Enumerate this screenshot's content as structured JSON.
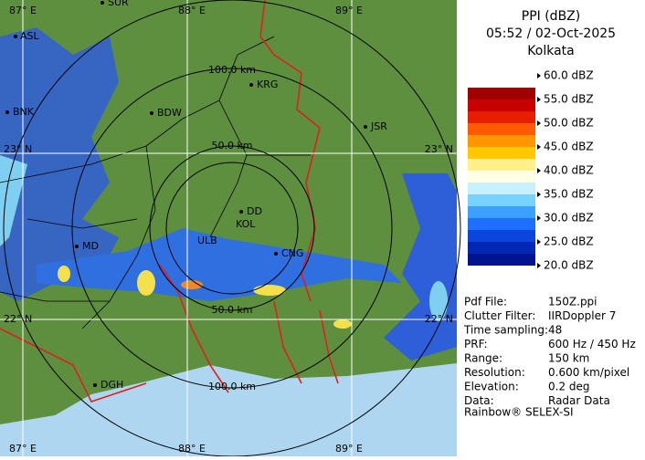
{
  "panel": {
    "title": "PPI (dBZ)",
    "time": "05:52 / 02-Oct-2025",
    "site": "Kolkata",
    "legend": [
      "60.0 dBZ",
      "55.0 dBZ",
      "50.0 dBZ",
      "45.0 dBZ",
      "40.0 dBZ",
      "35.0 dBZ",
      "30.0 dBZ",
      "25.0 dBZ",
      "20.0 dBZ"
    ],
    "info": [
      [
        "Pdf File:",
        "150Z.ppi"
      ],
      [
        "Clutter Filter:",
        "IIRDoppler 7"
      ],
      [
        "Time sampling:48",
        ""
      ],
      [
        "PRF:",
        "600 Hz / 450 Hz"
      ],
      [
        "Range:",
        "150 km"
      ],
      [
        "Resolution:",
        "0.600 km/pixel"
      ],
      [
        "Elevation:",
        "0.2 deg"
      ],
      [
        "Data:",
        "Radar Data"
      ]
    ],
    "footer": "Rainbow® SELEX-SI"
  },
  "map": {
    "lon_labels_top": [
      "87° E",
      "88° E",
      "89° E"
    ],
    "lon_labels_bottom": [
      "87° E",
      "88° E",
      "89° E"
    ],
    "lat_labels_left": [
      "23° N",
      "22° N"
    ],
    "lat_labels_right": [
      "23° N",
      "22° N"
    ],
    "rings": [
      "100.0 km",
      "50.0 km",
      "50.0 km",
      "100.0 km"
    ],
    "places": [
      "SUR",
      "ASL",
      "BNK",
      "BDW",
      "KRG",
      "JSR",
      "DD",
      "KOL",
      "ULB",
      "CNG",
      "MD",
      "DGH"
    ]
  }
}
